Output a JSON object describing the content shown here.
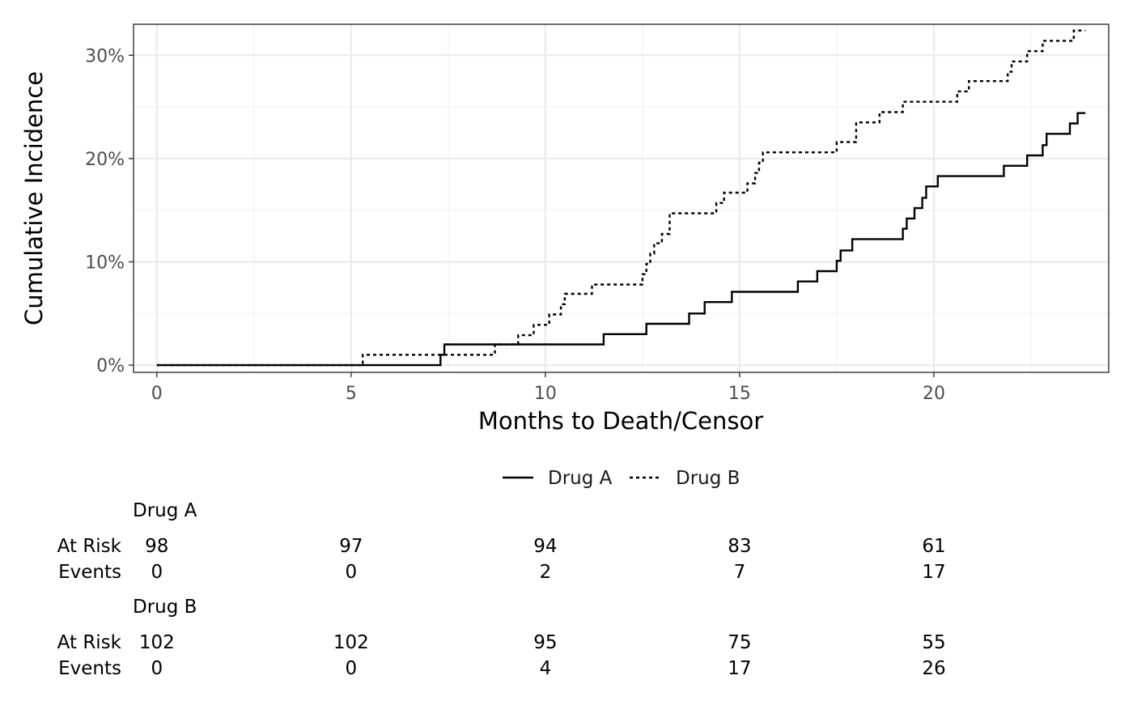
{
  "chart_data": {
    "type": "line",
    "step": true,
    "xlabel": "Months to Death/Censor",
    "ylabel": "Cumulative Incidence",
    "xlim": [
      -0.6,
      24.5
    ],
    "ylim": [
      -0.007,
      0.33
    ],
    "x_ticks": [
      0,
      5,
      10,
      15,
      20
    ],
    "x_tick_labels": [
      "0",
      "5",
      "10",
      "15",
      "20"
    ],
    "y_ticks": [
      0,
      0.1,
      0.2,
      0.3
    ],
    "y_tick_labels": [
      "0%",
      "10%",
      "20%",
      "30%"
    ],
    "grid": true,
    "legend_position": "bottom",
    "series": [
      {
        "name": "Drug A",
        "linetype": "solid",
        "color": "#000000",
        "x": [
          0,
          7.3,
          7.4,
          11.5,
          12.6,
          13.7,
          14.1,
          14.8,
          16.5,
          17.0,
          17.5,
          17.6,
          17.9,
          19.2,
          19.3,
          19.5,
          19.7,
          19.8,
          20.1,
          21.8,
          22.4,
          22.8,
          22.9,
          23.5,
          23.7,
          23.9
        ],
        "y": [
          0,
          0.01,
          0.02,
          0.03,
          0.04,
          0.05,
          0.061,
          0.071,
          0.081,
          0.091,
          0.101,
          0.111,
          0.122,
          0.132,
          0.142,
          0.152,
          0.162,
          0.173,
          0.183,
          0.193,
          0.203,
          0.213,
          0.224,
          0.234,
          0.244,
          0.244
        ]
      },
      {
        "name": "Drug B",
        "linetype": "dotted",
        "color": "#000000",
        "x": [
          0,
          5.3,
          8.7,
          9.3,
          9.7,
          10.0,
          10.1,
          10.4,
          10.5,
          11.2,
          12.5,
          12.6,
          12.7,
          12.8,
          13.0,
          13.2,
          14.4,
          14.6,
          15.2,
          15.4,
          15.5,
          15.6,
          17.5,
          18.0,
          18.6,
          19.2,
          20.6,
          20.9,
          21.9,
          22.0,
          22.4,
          22.8,
          23.6,
          23.9
        ],
        "y": [
          0,
          0.01,
          0.02,
          0.029,
          0.039,
          0.039,
          0.049,
          0.059,
          0.069,
          0.078,
          0.088,
          0.098,
          0.108,
          0.118,
          0.127,
          0.147,
          0.157,
          0.167,
          0.176,
          0.186,
          0.196,
          0.206,
          0.216,
          0.235,
          0.245,
          0.255,
          0.265,
          0.275,
          0.284,
          0.294,
          0.304,
          0.314,
          0.324,
          0.324
        ]
      }
    ]
  },
  "risk_table": {
    "times": [
      0,
      5,
      10,
      15,
      20
    ],
    "row_labels": {
      "at_risk": "At Risk",
      "events": "Events"
    },
    "groups": [
      {
        "name": "Drug A",
        "at_risk": [
          "98",
          "97",
          "94",
          "83",
          "61"
        ],
        "events": [
          "0",
          "0",
          "2",
          "7",
          "17"
        ]
      },
      {
        "name": "Drug B",
        "at_risk": [
          "102",
          "102",
          "95",
          "75",
          "55"
        ],
        "events": [
          "0",
          "0",
          "4",
          "17",
          "26"
        ]
      }
    ]
  }
}
